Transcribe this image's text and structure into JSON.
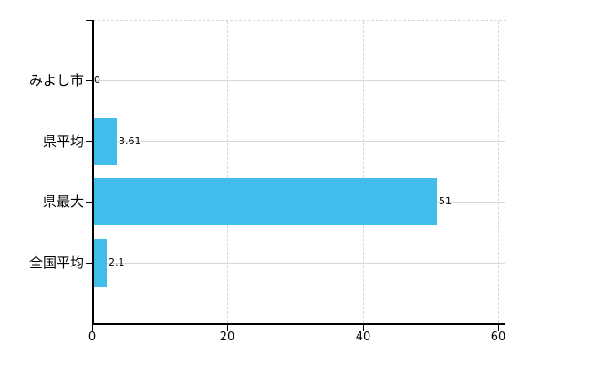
{
  "chart_data": {
    "type": "bar",
    "orientation": "horizontal",
    "title": "",
    "xlabel": "",
    "ylabel": "",
    "categories": [
      "みよし市",
      "県平均",
      "県最大",
      "全国平均"
    ],
    "values": [
      0,
      3.61,
      51,
      2.1
    ],
    "value_labels": [
      "0",
      "3.61",
      "51",
      "2.1"
    ],
    "xlim": [
      0,
      60
    ],
    "x_ticks": [
      0,
      20,
      40,
      60
    ],
    "x_tick_labels": [
      "0",
      "20",
      "40",
      "60"
    ],
    "grid": "on",
    "legend": "none",
    "colors": {
      "bar": "#41BDEC",
      "grid": "#D6D9D2",
      "axis": "#000000",
      "text": "#000000",
      "background": "#FFFFFF"
    }
  }
}
